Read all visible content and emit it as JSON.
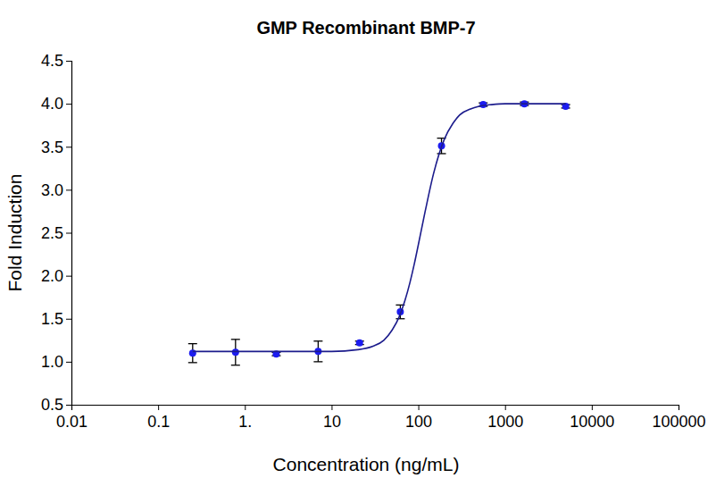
{
  "chart_data": {
    "type": "scatter",
    "title": "GMP Recombinant BMP-7",
    "x_label": "Concentration (ng/mL)",
    "y_label": "Fold Induction",
    "log": "x",
    "grid": false,
    "xlim": [
      0.01,
      100000
    ],
    "xticks": [
      0.01,
      0.1,
      {
        "value": 1,
        "label": "1."
      },
      10,
      100,
      1000,
      10000,
      100000
    ],
    "ylim": [
      0.5,
      4.5
    ],
    "yticks": [
      0.5,
      {
        "value": 1,
        "label": "1.0"
      },
      1.5,
      {
        "value": 2,
        "label": "2.0"
      },
      2.5,
      {
        "value": 3,
        "label": "3.0"
      },
      3.5,
      {
        "value": 4,
        "label": "4.0"
      },
      4.5
    ],
    "series": [
      {
        "type": "scatter",
        "color": "#1c1cf0",
        "marker": "circle",
        "x": [
          0.25,
          0.78,
          2.3,
          7,
          21,
          62,
          185,
          560,
          1670,
          5000
        ],
        "values": [
          1.1,
          1.11,
          1.09,
          1.12,
          1.22,
          1.58,
          3.51,
          3.99,
          4.0,
          3.97
        ],
        "errors": [
          0.11,
          0.15,
          0.02,
          0.12,
          0.02,
          0.08,
          0.09,
          0.02,
          0.02,
          0.02
        ]
      },
      {
        "type": "line",
        "color": "#1c1c8c",
        "line_style": "solid",
        "x": [
          0.25,
          1,
          5,
          10,
          20,
          30,
          40,
          50,
          60,
          70,
          80,
          90,
          100,
          120,
          150,
          200,
          250,
          300,
          400,
          500,
          700,
          1000,
          2000,
          5000
        ],
        "values": [
          1.12,
          1.12,
          1.12,
          1.12,
          1.14,
          1.18,
          1.25,
          1.37,
          1.52,
          1.71,
          1.92,
          2.14,
          2.36,
          2.75,
          3.19,
          3.59,
          3.77,
          3.87,
          3.94,
          3.97,
          3.99,
          4.0,
          4.0,
          4.0
        ]
      }
    ]
  }
}
